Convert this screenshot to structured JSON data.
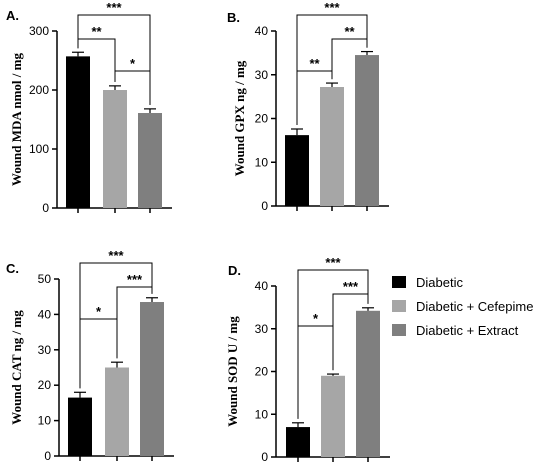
{
  "legend": {
    "entries": [
      {
        "name": "Diabetic",
        "color": "#000000"
      },
      {
        "name": "Diabetic + Cefepime",
        "color": "#a6a6a6"
      },
      {
        "name": "Diabetic + Extract",
        "color": "#7f7f7f"
      }
    ]
  },
  "chart_data": [
    {
      "type": "bar",
      "panel_label": "A.",
      "ylabel": "Wound MDA nmol / mg",
      "categories": [
        "Diabetic",
        "Diabetic + Cefepime",
        "Diabetic + Extract"
      ],
      "values": [
        257,
        200,
        161
      ],
      "errors": [
        7,
        7,
        7
      ],
      "ylim": [
        0,
        300
      ],
      "yticks": [
        0,
        100,
        200,
        300
      ],
      "significance": [
        {
          "from": 0,
          "to": 1,
          "label": "**",
          "level": 1
        },
        {
          "from": 1,
          "to": 2,
          "label": "*",
          "level": 0
        },
        {
          "from": 0,
          "to": 2,
          "label": "***",
          "level": 2
        }
      ]
    },
    {
      "type": "bar",
      "panel_label": "B.",
      "ylabel": "Wound GPX ng / mg",
      "categories": [
        "Diabetic",
        "Diabetic + Cefepime",
        "Diabetic + Extract"
      ],
      "values": [
        16.2,
        27.2,
        34.5
      ],
      "errors": [
        1.4,
        0.9,
        0.8
      ],
      "ylim": [
        0,
        40
      ],
      "yticks": [
        0,
        10,
        20,
        30,
        40
      ],
      "significance": [
        {
          "from": 0,
          "to": 1,
          "label": "**",
          "level": 0
        },
        {
          "from": 1,
          "to": 2,
          "label": "**",
          "level": 1
        },
        {
          "from": 0,
          "to": 2,
          "label": "***",
          "level": 2
        }
      ]
    },
    {
      "type": "bar",
      "panel_label": "C.",
      "ylabel": "Wound CAT ng / mg",
      "categories": [
        "Diabetic",
        "Diabetic + Cefepime",
        "Diabetic + Extract"
      ],
      "values": [
        16.5,
        25,
        43.5
      ],
      "errors": [
        1.5,
        1.5,
        1.2
      ],
      "ylim": [
        0,
        50
      ],
      "yticks": [
        0,
        10,
        20,
        30,
        40,
        50
      ],
      "significance": [
        {
          "from": 0,
          "to": 1,
          "label": "*",
          "level": 0
        },
        {
          "from": 1,
          "to": 2,
          "label": "***",
          "level": 1
        },
        {
          "from": 0,
          "to": 2,
          "label": "***",
          "level": 2
        }
      ]
    },
    {
      "type": "bar",
      "panel_label": "D.",
      "ylabel": "Wound SOD U / mg",
      "categories": [
        "Diabetic",
        "Diabetic + Cefepime",
        "Diabetic + Extract"
      ],
      "values": [
        7,
        19,
        34.2
      ],
      "errors": [
        1,
        0.4,
        0.7
      ],
      "ylim": [
        0,
        40
      ],
      "yticks": [
        0,
        10,
        20,
        30,
        40
      ],
      "significance": [
        {
          "from": 0,
          "to": 1,
          "label": "*",
          "level": 0
        },
        {
          "from": 1,
          "to": 2,
          "label": "***",
          "level": 1
        },
        {
          "from": 0,
          "to": 2,
          "label": "***",
          "level": 2
        }
      ]
    }
  ]
}
